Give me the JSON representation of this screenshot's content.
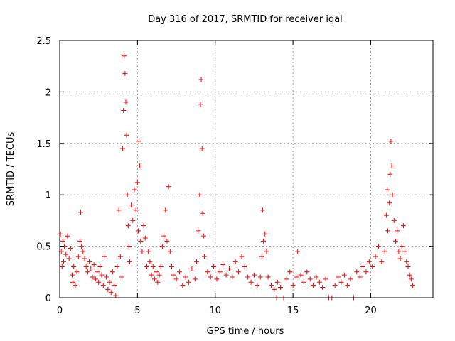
{
  "chart_data": {
    "type": "scatter",
    "title": "Day 316 of 2017, SRMTID for receiver iqal",
    "xlabel": "GPS time / hours",
    "ylabel": "SRMTID / TECUs",
    "xlim": [
      0,
      24
    ],
    "ylim": [
      0,
      2.5
    ],
    "xticks": [
      0,
      5,
      10,
      15,
      20
    ],
    "yticks": [
      0,
      0.5,
      1,
      1.5,
      2,
      2.5
    ],
    "xtick_labels": [
      "0",
      "5",
      "10",
      "15",
      "20"
    ],
    "ytick_labels": [
      "0",
      "0.5",
      "1",
      "1.5",
      "2",
      "2.5"
    ],
    "grid": true,
    "marker": "+",
    "color": "#ff0000",
    "series": [
      {
        "name": "SRMTID",
        "points": [
          [
            0.05,
            0.62
          ],
          [
            0.1,
            0.45
          ],
          [
            0.15,
            0.3
          ],
          [
            0.2,
            0.55
          ],
          [
            0.25,
            0.35
          ],
          [
            0.3,
            0.5
          ],
          [
            0.4,
            0.42
          ],
          [
            0.5,
            0.6
          ],
          [
            0.6,
            0.38
          ],
          [
            0.7,
            0.48
          ],
          [
            0.8,
            0.22
          ],
          [
            0.85,
            0.15
          ],
          [
            0.9,
            0.3
          ],
          [
            1.0,
            0.12
          ],
          [
            1.1,
            0.25
          ],
          [
            1.2,
            0.4
          ],
          [
            1.3,
            0.55
          ],
          [
            1.35,
            0.83
          ],
          [
            1.4,
            0.5
          ],
          [
            1.5,
            0.45
          ],
          [
            1.6,
            0.38
          ],
          [
            1.7,
            0.3
          ],
          [
            1.8,
            0.25
          ],
          [
            1.9,
            0.35
          ],
          [
            2.0,
            0.28
          ],
          [
            2.1,
            0.2
          ],
          [
            2.2,
            0.32
          ],
          [
            2.3,
            0.18
          ],
          [
            2.4,
            0.25
          ],
          [
            2.5,
            0.15
          ],
          [
            2.6,
            0.3
          ],
          [
            2.7,
            0.22
          ],
          [
            2.8,
            0.12
          ],
          [
            2.9,
            0.4
          ],
          [
            3.0,
            0.2
          ],
          [
            3.1,
            0.08
          ],
          [
            3.2,
            0.15
          ],
          [
            3.3,
            0.05
          ],
          [
            3.4,
            0.25
          ],
          [
            3.5,
            0.12
          ],
          [
            3.6,
            0.02
          ],
          [
            3.7,
            0.3
          ],
          [
            3.8,
            0.85
          ],
          [
            3.9,
            0.4
          ],
          [
            4.0,
            0.2
          ],
          [
            4.05,
            1.45
          ],
          [
            4.1,
            1.82
          ],
          [
            4.15,
            2.35
          ],
          [
            4.2,
            2.18
          ],
          [
            4.25,
            1.9
          ],
          [
            4.3,
            1.58
          ],
          [
            4.35,
            1.0
          ],
          [
            4.4,
            0.7
          ],
          [
            4.45,
            0.5
          ],
          [
            4.5,
            0.35
          ],
          [
            4.6,
            0.9
          ],
          [
            4.7,
            0.75
          ],
          [
            4.8,
            1.05
          ],
          [
            4.9,
            0.85
          ],
          [
            5.0,
            1.12
          ],
          [
            5.05,
            0.65
          ],
          [
            5.1,
            1.52
          ],
          [
            5.15,
            1.28
          ],
          [
            5.2,
            0.55
          ],
          [
            5.3,
            0.45
          ],
          [
            5.4,
            0.7
          ],
          [
            5.5,
            0.58
          ],
          [
            5.6,
            0.3
          ],
          [
            5.7,
            0.45
          ],
          [
            5.8,
            0.35
          ],
          [
            5.9,
            0.22
          ],
          [
            6.0,
            0.3
          ],
          [
            6.1,
            0.18
          ],
          [
            6.2,
            0.25
          ],
          [
            6.3,
            0.15
          ],
          [
            6.4,
            0.22
          ],
          [
            6.5,
            0.3
          ],
          [
            6.6,
            0.5
          ],
          [
            6.7,
            0.6
          ],
          [
            6.8,
            0.85
          ],
          [
            6.9,
            0.55
          ],
          [
            7.0,
            1.08
          ],
          [
            7.1,
            0.45
          ],
          [
            7.2,
            0.3
          ],
          [
            7.3,
            0.22
          ],
          [
            7.5,
            0.18
          ],
          [
            7.7,
            0.25
          ],
          [
            7.9,
            0.12
          ],
          [
            8.1,
            0.2
          ],
          [
            8.3,
            0.15
          ],
          [
            8.5,
            0.28
          ],
          [
            8.7,
            0.18
          ],
          [
            8.8,
            0.35
          ],
          [
            8.9,
            0.65
          ],
          [
            9.0,
            1.0
          ],
          [
            9.05,
            1.88
          ],
          [
            9.1,
            2.12
          ],
          [
            9.15,
            1.45
          ],
          [
            9.2,
            0.82
          ],
          [
            9.25,
            0.6
          ],
          [
            9.3,
            0.4
          ],
          [
            9.5,
            0.25
          ],
          [
            9.7,
            0.2
          ],
          [
            9.9,
            0.3
          ],
          [
            10.1,
            0.18
          ],
          [
            10.3,
            0.25
          ],
          [
            10.5,
            0.32
          ],
          [
            10.7,
            0.22
          ],
          [
            10.9,
            0.28
          ],
          [
            11.1,
            0.2
          ],
          [
            11.3,
            0.35
          ],
          [
            11.5,
            0.25
          ],
          [
            11.7,
            0.4
          ],
          [
            11.9,
            0.3
          ],
          [
            12.1,
            0.2
          ],
          [
            12.3,
            0.15
          ],
          [
            12.5,
            0.22
          ],
          [
            12.7,
            0.12
          ],
          [
            12.9,
            0.2
          ],
          [
            13.0,
            0.4
          ],
          [
            13.05,
            0.85
          ],
          [
            13.1,
            0.55
          ],
          [
            13.2,
            0.62
          ],
          [
            13.3,
            0.45
          ],
          [
            13.4,
            0.2
          ],
          [
            13.6,
            0.12
          ],
          [
            13.8,
            0.08
          ],
          [
            13.95,
            0.0
          ],
          [
            14.0,
            0.15
          ],
          [
            14.2,
            0.1
          ],
          [
            14.4,
            0.0
          ],
          [
            14.6,
            0.18
          ],
          [
            14.8,
            0.25
          ],
          [
            15.0,
            0.12
          ],
          [
            15.2,
            0.2
          ],
          [
            15.3,
            0.45
          ],
          [
            15.5,
            0.22
          ],
          [
            15.7,
            0.15
          ],
          [
            15.9,
            0.25
          ],
          [
            16.1,
            0.18
          ],
          [
            16.3,
            0.12
          ],
          [
            16.5,
            0.2
          ],
          [
            16.7,
            0.15
          ],
          [
            16.9,
            0.1
          ],
          [
            17.1,
            0.18
          ],
          [
            17.3,
            0.0
          ],
          [
            17.5,
            0.0
          ],
          [
            17.7,
            0.12
          ],
          [
            17.9,
            0.2
          ],
          [
            18.1,
            0.15
          ],
          [
            18.3,
            0.22
          ],
          [
            18.5,
            0.12
          ],
          [
            18.7,
            0.18
          ],
          [
            18.9,
            0.0
          ],
          [
            19.1,
            0.25
          ],
          [
            19.3,
            0.2
          ],
          [
            19.5,
            0.3
          ],
          [
            19.7,
            0.25
          ],
          [
            19.9,
            0.35
          ],
          [
            20.1,
            0.3
          ],
          [
            20.3,
            0.4
          ],
          [
            20.5,
            0.5
          ],
          [
            20.7,
            0.35
          ],
          [
            20.9,
            0.45
          ],
          [
            21.0,
            0.8
          ],
          [
            21.05,
            1.05
          ],
          [
            21.1,
            0.65
          ],
          [
            21.2,
            0.92
          ],
          [
            21.25,
            1.2
          ],
          [
            21.3,
            1.52
          ],
          [
            21.35,
            1.28
          ],
          [
            21.4,
            1.0
          ],
          [
            21.5,
            0.75
          ],
          [
            21.6,
            0.55
          ],
          [
            21.7,
            0.65
          ],
          [
            21.8,
            0.45
          ],
          [
            21.9,
            0.38
          ],
          [
            22.0,
            0.5
          ],
          [
            22.1,
            0.7
          ],
          [
            22.2,
            0.45
          ],
          [
            22.3,
            0.35
          ],
          [
            22.4,
            0.3
          ],
          [
            22.5,
            0.22
          ],
          [
            22.6,
            0.18
          ],
          [
            22.7,
            0.12
          ]
        ]
      }
    ]
  }
}
